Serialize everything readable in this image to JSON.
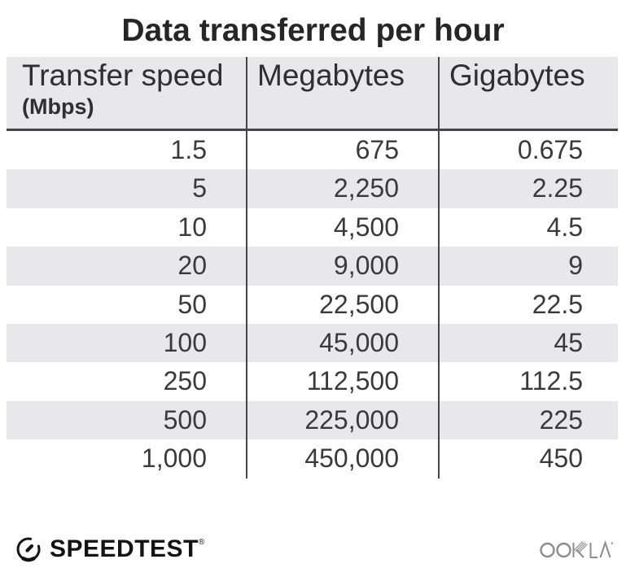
{
  "title": "Data transferred per hour",
  "table": {
    "header": {
      "col1_label": "Transfer speed",
      "col1_sublabel": "(Mbps)",
      "col2_label": "Megabytes",
      "col3_label": "Gigabytes"
    },
    "rows": [
      {
        "speed": "1.5",
        "mb": "675",
        "gb": "0.675"
      },
      {
        "speed": "5",
        "mb": "2,250",
        "gb": "2.25"
      },
      {
        "speed": "10",
        "mb": "4,500",
        "gb": "4.5"
      },
      {
        "speed": "20",
        "mb": "9,000",
        "gb": "9"
      },
      {
        "speed": "50",
        "mb": "22,500",
        "gb": "22.5"
      },
      {
        "speed": "100",
        "mb": "45,000",
        "gb": "45"
      },
      {
        "speed": "250",
        "mb": "112,500",
        "gb": "112.5"
      },
      {
        "speed": "500",
        "mb": "225,000",
        "gb": "225"
      },
      {
        "speed": "1,000",
        "mb": "450,000",
        "gb": "450"
      }
    ]
  },
  "footer": {
    "speedtest_label": "SPEEDTEST",
    "speedtest_mark": "®",
    "ookla_label": "OOKLA"
  },
  "colors": {
    "row_alt_bg": "#e8e8ea",
    "line_color": "#454545",
    "title_color": "#262626",
    "text_color": "#3a3a3a",
    "ookla_gray": "#8d8d8d",
    "logo_black": "#141414"
  },
  "chart_data": {
    "type": "table",
    "title": "Data transferred per hour",
    "columns": [
      "Transfer speed (Mbps)",
      "Megabytes",
      "Gigabytes"
    ],
    "rows": [
      [
        1.5,
        675,
        0.675
      ],
      [
        5,
        2250,
        2.25
      ],
      [
        10,
        4500,
        4.5
      ],
      [
        20,
        9000,
        9
      ],
      [
        50,
        22500,
        22.5
      ],
      [
        100,
        45000,
        45
      ],
      [
        250,
        112500,
        112.5
      ],
      [
        500,
        225000,
        225
      ],
      [
        1000,
        450000,
        450
      ]
    ]
  }
}
